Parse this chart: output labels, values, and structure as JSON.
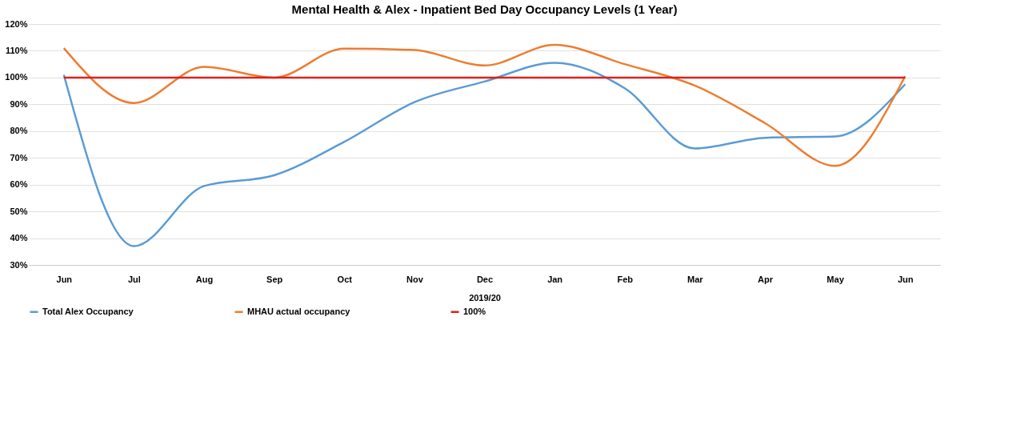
{
  "chart_data": {
    "type": "line",
    "title": "Mental Health & Alex - Inpatient Bed Day Occupancy Levels  (1 Year)",
    "xlabel": "2019/20",
    "categories": [
      "Jun",
      "Jul",
      "Aug",
      "Sep",
      "Oct",
      "Nov",
      "Dec",
      "Jan",
      "Feb",
      "Mar",
      "Apr",
      "May",
      "Jun"
    ],
    "series": [
      {
        "name": "Total Alex Occupancy",
        "color": "#5b9bd5",
        "values": [
          101,
          37,
          59.5,
          63.5,
          76,
          90.8,
          98.5,
          105.5,
          96,
          73.5,
          77.5,
          78,
          97.5
        ]
      },
      {
        "name": "MHAU actual occupancy",
        "color": "#ed7d31",
        "values": [
          111,
          90.5,
          104,
          100,
          110.8,
          110.3,
          104.5,
          112.2,
          105,
          97,
          83,
          67,
          100.5
        ]
      },
      {
        "name": "100%",
        "color": "#e0201b",
        "values": [
          100,
          100,
          100,
          100,
          100,
          100,
          100,
          100,
          100,
          100,
          100,
          100,
          100
        ]
      }
    ],
    "ylim": [
      30,
      120
    ],
    "yticks": [
      {
        "value": 30,
        "label": "30%"
      },
      {
        "value": 40,
        "label": "40%"
      },
      {
        "value": 50,
        "label": "50%"
      },
      {
        "value": 60,
        "label": "60%"
      },
      {
        "value": 70,
        "label": "70%"
      },
      {
        "value": 80,
        "label": "80%"
      },
      {
        "value": 90,
        "label": "90%"
      },
      {
        "value": 100,
        "label": "100%"
      },
      {
        "value": 110,
        "label": "110%"
      },
      {
        "value": 120,
        "label": "120%"
      }
    ],
    "grid": "y",
    "legend": "bottom",
    "marker": "none",
    "line_style": "solid"
  }
}
